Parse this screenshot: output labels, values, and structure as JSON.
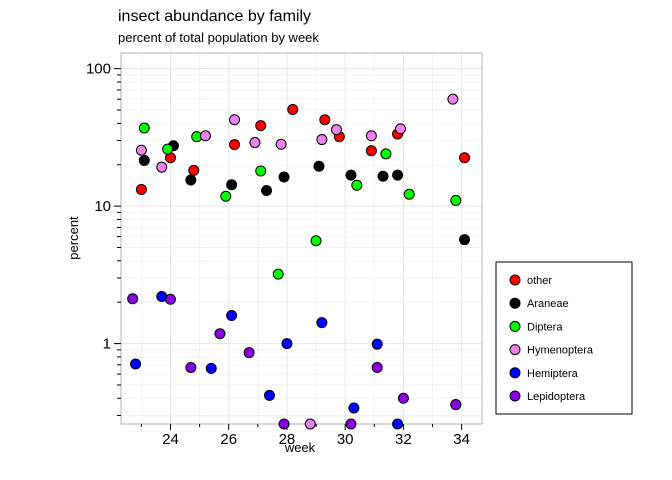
{
  "chart_data": {
    "type": "scatter",
    "title": "insect abundance by family",
    "subtitle": "percent of total population by week",
    "xlabel": "week",
    "ylabel": "percent",
    "x_scale": "linear",
    "y_scale": "log",
    "xlim": [
      22.3,
      34.7
    ],
    "ylim": [
      0.26,
      130
    ],
    "x_ticks": [
      24,
      26,
      28,
      30,
      32,
      34
    ],
    "y_ticks": [
      1,
      10,
      100
    ],
    "y_tick_labels": [
      "1",
      "10",
      "100"
    ],
    "grid": true,
    "legend_position": "right",
    "series": [
      {
        "name": "other",
        "color": "#ff0000",
        "points": [
          [
            23.0,
            13.2
          ],
          [
            24.0,
            22.5
          ],
          [
            24.8,
            18.2
          ],
          [
            26.2,
            28.0
          ],
          [
            27.1,
            38.5
          ],
          [
            28.2,
            50.5
          ],
          [
            29.3,
            42.5
          ],
          [
            29.8,
            32.0
          ],
          [
            30.9,
            25.3
          ],
          [
            31.8,
            33.5
          ],
          [
            34.1,
            22.5
          ]
        ]
      },
      {
        "name": "Araneae",
        "color": "#000000",
        "points": [
          [
            23.1,
            21.5
          ],
          [
            24.1,
            27.5
          ],
          [
            24.7,
            15.5
          ],
          [
            26.1,
            14.3
          ],
          [
            27.3,
            13.0
          ],
          [
            27.9,
            16.3
          ],
          [
            29.1,
            19.5
          ],
          [
            30.2,
            16.8
          ],
          [
            31.3,
            16.5
          ],
          [
            31.8,
            16.8
          ],
          [
            34.1,
            5.7
          ]
        ]
      },
      {
        "name": "Diptera",
        "color": "#00ff00",
        "points": [
          [
            23.1,
            37.0
          ],
          [
            23.9,
            26.0
          ],
          [
            24.9,
            32.0
          ],
          [
            25.9,
            11.8
          ],
          [
            27.1,
            18.0
          ],
          [
            27.7,
            3.2
          ],
          [
            29.0,
            5.6
          ],
          [
            30.4,
            14.2
          ],
          [
            31.4,
            24.0
          ],
          [
            32.2,
            12.2
          ],
          [
            33.8,
            11.0
          ]
        ]
      },
      {
        "name": "Hymenoptera",
        "color": "#ee82ee",
        "points": [
          [
            23.0,
            25.5
          ],
          [
            23.7,
            19.2
          ],
          [
            25.2,
            32.5
          ],
          [
            26.2,
            42.5
          ],
          [
            26.9,
            29.0
          ],
          [
            27.8,
            28.2
          ],
          [
            28.8,
            0.25
          ],
          [
            29.2,
            30.5
          ],
          [
            29.7,
            36.0
          ],
          [
            30.9,
            32.5
          ],
          [
            31.9,
            36.5
          ],
          [
            33.7,
            60.0
          ]
        ]
      },
      {
        "name": "Hemiptera",
        "color": "#0000ff",
        "points": [
          [
            22.8,
            0.71
          ],
          [
            23.7,
            2.2
          ],
          [
            25.4,
            0.66
          ],
          [
            26.1,
            1.6
          ],
          [
            27.4,
            0.42
          ],
          [
            28.0,
            1.0
          ],
          [
            29.2,
            1.42
          ],
          [
            30.3,
            0.34
          ],
          [
            31.1,
            0.99
          ],
          [
            31.8,
            0.25
          ],
          [
            33.8,
            0.36
          ]
        ]
      },
      {
        "name": "Lepidoptera",
        "color": "#8a00e6",
        "points": [
          [
            22.7,
            2.12
          ],
          [
            24.0,
            2.1
          ],
          [
            24.7,
            0.67
          ],
          [
            25.7,
            1.18
          ],
          [
            26.7,
            0.86
          ],
          [
            27.9,
            0.25
          ],
          [
            30.2,
            0.25
          ],
          [
            31.1,
            0.67
          ],
          [
            32.0,
            0.4
          ],
          [
            33.8,
            0.36
          ]
        ]
      }
    ]
  }
}
